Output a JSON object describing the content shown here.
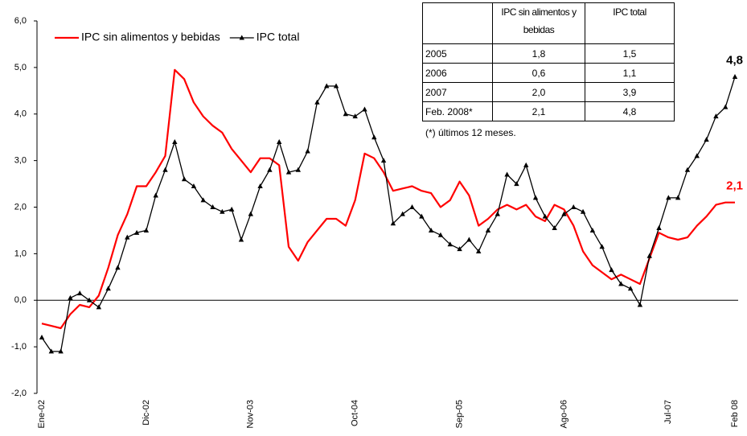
{
  "chart_data": {
    "type": "line",
    "categories": [
      "Ene-02",
      null,
      null,
      null,
      null,
      null,
      null,
      null,
      null,
      null,
      null,
      "Dic-02",
      null,
      null,
      null,
      null,
      null,
      null,
      null,
      null,
      null,
      null,
      "Nov-03",
      null,
      null,
      null,
      null,
      null,
      null,
      null,
      null,
      null,
      null,
      "Oct-04",
      null,
      null,
      null,
      null,
      null,
      null,
      null,
      null,
      null,
      null,
      "Sep-05",
      null,
      null,
      null,
      null,
      null,
      null,
      null,
      null,
      null,
      null,
      "Ago-06",
      null,
      null,
      null,
      null,
      null,
      null,
      null,
      null,
      null,
      null,
      "Jul-07",
      null,
      null,
      null,
      null,
      null,
      null,
      "Feb 08"
    ],
    "series": [
      {
        "name": "IPC sin alimentos y bebidas",
        "color": "#ff0000",
        "values": [
          -0.5,
          -0.55,
          -0.6,
          -0.3,
          -0.1,
          -0.15,
          0.1,
          0.7,
          1.4,
          1.85,
          2.45,
          2.45,
          2.75,
          3.1,
          4.95,
          4.75,
          4.25,
          3.95,
          3.75,
          3.6,
          3.25,
          3.0,
          2.75,
          3.05,
          3.05,
          2.9,
          1.15,
          0.85,
          1.25,
          1.5,
          1.75,
          1.75,
          1.6,
          2.15,
          3.15,
          3.05,
          2.75,
          2.35,
          2.4,
          2.45,
          2.35,
          2.3,
          2.0,
          2.15,
          2.55,
          2.25,
          1.6,
          1.75,
          1.95,
          2.05,
          1.95,
          2.05,
          1.8,
          1.7,
          2.05,
          1.95,
          1.6,
          1.05,
          0.75,
          0.6,
          0.45,
          0.55,
          0.45,
          0.35,
          0.9,
          1.45,
          1.35,
          1.3,
          1.35,
          1.6,
          1.8,
          2.05,
          2.1,
          2.1
        ],
        "value_labels": [
          null,
          null,
          null,
          null,
          null,
          null,
          null,
          null,
          null,
          null,
          null,
          null,
          null,
          null,
          null,
          null,
          null,
          null,
          null,
          null,
          null,
          null,
          null,
          null,
          null,
          null,
          null,
          null,
          null,
          null,
          null,
          null,
          null,
          null,
          null,
          null,
          null,
          null,
          null,
          null,
          null,
          null,
          null,
          null,
          null,
          null,
          null,
          null,
          null,
          null,
          null,
          null,
          null,
          null,
          null,
          null,
          null,
          null,
          null,
          null,
          null,
          null,
          null,
          null,
          null,
          null,
          null,
          null,
          null,
          null,
          null,
          null,
          null,
          "2,1"
        ]
      },
      {
        "name": "IPC total",
        "color": "#000000",
        "marker": "triangle",
        "values": [
          -0.8,
          -1.1,
          -1.1,
          0.05,
          0.15,
          0.0,
          -0.15,
          0.25,
          0.7,
          1.35,
          1.45,
          1.5,
          2.25,
          2.8,
          3.4,
          2.6,
          2.45,
          2.15,
          2.0,
          1.9,
          1.95,
          1.3,
          1.85,
          2.45,
          2.8,
          3.4,
          2.75,
          2.8,
          3.2,
          4.25,
          4.6,
          4.6,
          4.0,
          3.95,
          4.1,
          3.5,
          3.0,
          1.65,
          1.85,
          2.0,
          1.8,
          1.5,
          1.4,
          1.2,
          1.1,
          1.3,
          1.05,
          1.5,
          1.85,
          2.7,
          2.5,
          2.9,
          2.2,
          1.8,
          1.55,
          1.85,
          2.0,
          1.9,
          1.5,
          1.15,
          0.65,
          0.35,
          0.25,
          -0.1,
          0.95,
          1.55,
          2.2,
          2.2,
          2.8,
          3.1,
          3.45,
          3.95,
          4.15,
          4.8
        ],
        "value_labels": [
          null,
          null,
          null,
          null,
          null,
          null,
          null,
          null,
          null,
          null,
          null,
          null,
          null,
          null,
          null,
          null,
          null,
          null,
          null,
          null,
          null,
          null,
          null,
          null,
          null,
          null,
          null,
          null,
          null,
          null,
          null,
          null,
          null,
          null,
          null,
          null,
          null,
          null,
          null,
          null,
          null,
          null,
          null,
          null,
          null,
          null,
          null,
          null,
          null,
          null,
          null,
          null,
          null,
          null,
          null,
          null,
          null,
          null,
          null,
          null,
          null,
          null,
          null,
          null,
          null,
          null,
          null,
          null,
          null,
          null,
          null,
          null,
          null,
          "4,8"
        ]
      }
    ],
    "ylim": [
      -2,
      6
    ],
    "yticks": [
      {
        "value": -2,
        "label": "-2,0"
      },
      {
        "value": -1,
        "label": "-1,0"
      },
      {
        "value": 0,
        "label": "0,0"
      },
      {
        "value": 1,
        "label": "1,0"
      },
      {
        "value": 2,
        "label": "2,0"
      },
      {
        "value": 3,
        "label": "3,0"
      },
      {
        "value": 4,
        "label": "4,0"
      },
      {
        "value": 5,
        "label": "5,0"
      },
      {
        "value": 6,
        "label": "6,0"
      }
    ],
    "grid": false,
    "legend": "top-left",
    "table": {
      "columns": [
        "IPC sin alimentos y bebidas",
        "IPC total"
      ],
      "rows": [
        [
          "2005",
          "1,8",
          "1,5"
        ],
        [
          "2006",
          "0,6",
          "1,1"
        ],
        [
          "2007",
          "2,0",
          "3,9"
        ],
        [
          "Feb. 2008*",
          "2,1",
          "4,8"
        ]
      ],
      "note": "(*) últimos 12 meses."
    }
  }
}
